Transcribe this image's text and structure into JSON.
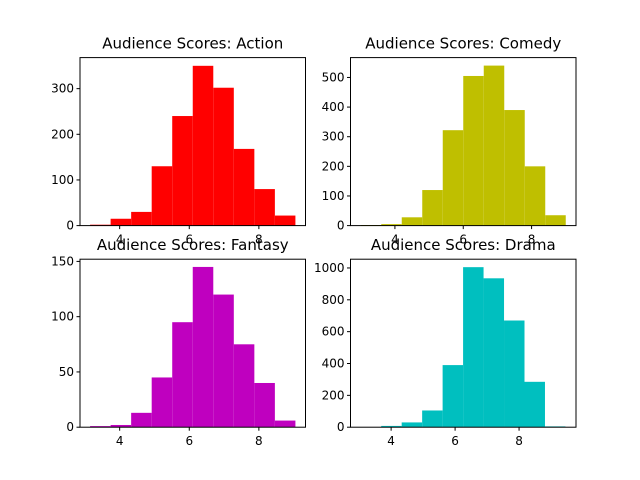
{
  "chart_data": [
    {
      "type": "histogram",
      "title": "Audience Scores: Action",
      "color": "#ff0000",
      "bins": [
        3.15,
        3.74,
        4.33,
        4.92,
        5.51,
        6.1,
        6.69,
        7.28,
        7.87,
        8.46,
        9.05
      ],
      "counts": [
        2,
        15,
        30,
        130,
        240,
        350,
        302,
        168,
        80,
        22
      ],
      "xlim": [
        2.86,
        9.34
      ],
      "xticks": [
        4,
        6,
        8
      ],
      "ylim": [
        0,
        368
      ],
      "yticks": [
        0,
        100,
        200,
        300
      ]
    },
    {
      "type": "histogram",
      "title": "Audience Scores: Comedy",
      "color": "#bfbf00",
      "bins": [
        3.0,
        3.6,
        4.2,
        4.8,
        5.4,
        6.0,
        6.6,
        7.2,
        7.8,
        8.4,
        9.0
      ],
      "counts": [
        2,
        5,
        28,
        120,
        322,
        505,
        540,
        390,
        200,
        35
      ],
      "xlim": [
        2.7,
        9.3
      ],
      "xticks": [
        4,
        6,
        8
      ],
      "ylim": [
        0,
        567
      ],
      "yticks": [
        0,
        100,
        200,
        300,
        400,
        500
      ]
    },
    {
      "type": "histogram",
      "title": "Audience Scores: Fantasy",
      "color": "#bf00bf",
      "bins": [
        3.15,
        3.74,
        4.33,
        4.92,
        5.51,
        6.1,
        6.69,
        7.28,
        7.87,
        8.46,
        9.05
      ],
      "counts": [
        1,
        2,
        13,
        45,
        95,
        145,
        120,
        75,
        40,
        6
      ],
      "xlim": [
        2.86,
        9.34
      ],
      "xticks": [
        4,
        6,
        8
      ],
      "ylim": [
        0,
        152
      ],
      "yticks": [
        0,
        50,
        100,
        150
      ]
    },
    {
      "type": "histogram",
      "title": "Audience Scores: Drama",
      "color": "#00bfbf",
      "bins": [
        3.05,
        3.69,
        4.33,
        4.97,
        5.61,
        6.25,
        6.89,
        7.53,
        8.17,
        8.81,
        9.45
      ],
      "counts": [
        1,
        8,
        30,
        105,
        390,
        1005,
        935,
        670,
        285,
        5
      ],
      "xlim": [
        2.73,
        9.78
      ],
      "xticks": [
        4,
        6,
        8
      ],
      "ylim": [
        0,
        1055
      ],
      "yticks": [
        0,
        200,
        400,
        600,
        800,
        1000
      ]
    }
  ]
}
